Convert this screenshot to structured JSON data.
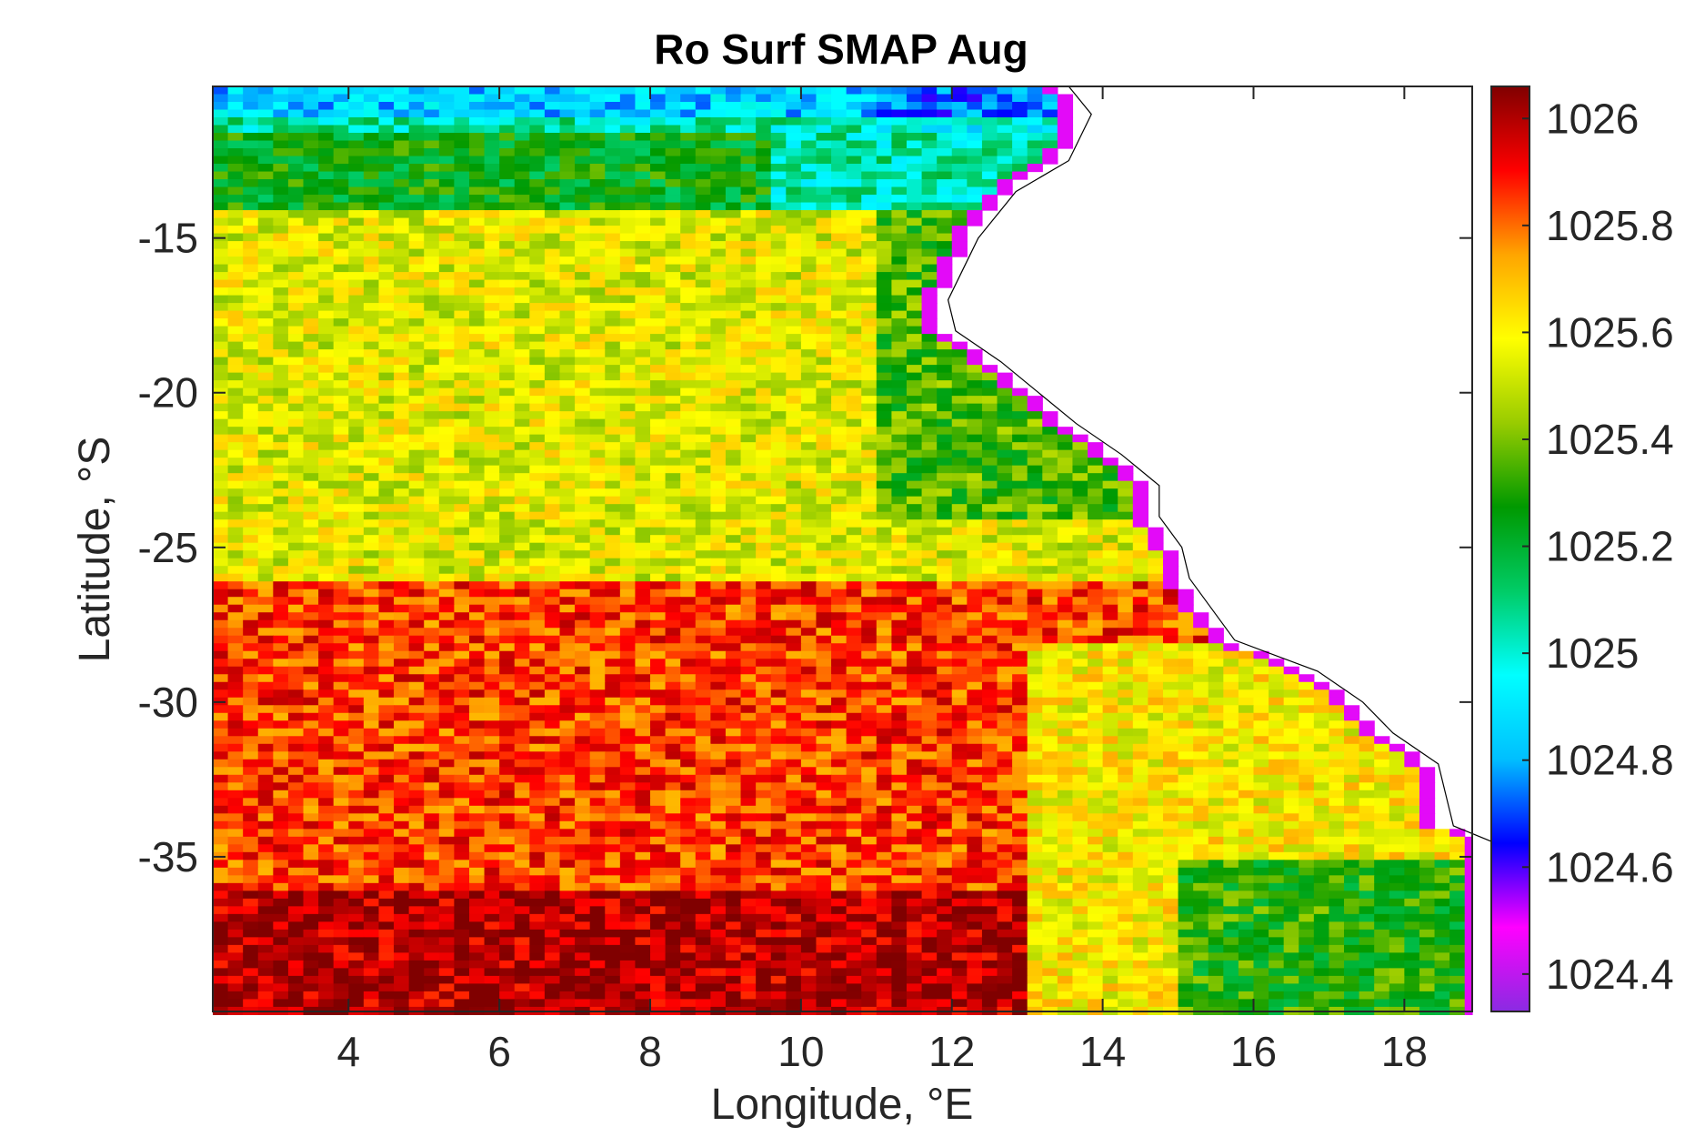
{
  "chart_data": {
    "type": "heatmap",
    "title": "Ro Surf SMAP Aug",
    "xlabel": "Longitude, °E",
    "ylabel": "Latitude, °S",
    "xlim": [
      2.2,
      18.9
    ],
    "ylim": [
      -40,
      -10.1
    ],
    "xticks": [
      4,
      6,
      8,
      10,
      12,
      14,
      16,
      18
    ],
    "xtick_labels": [
      "4",
      "6",
      "8",
      "10",
      "12",
      "14",
      "16",
      "18"
    ],
    "yticks": [
      -15,
      -20,
      -25,
      -30,
      -35
    ],
    "ytick_labels": [
      "-15",
      "-20",
      "-25",
      "-30",
      "-35"
    ],
    "colorbar": {
      "range": [
        1024.33,
        1026.06
      ],
      "ticks": [
        1026,
        1025.8,
        1025.6,
        1025.4,
        1025.2,
        1025,
        1024.8,
        1024.6,
        1024.4
      ],
      "tick_labels": [
        "1026",
        "1025.8",
        "1025.6",
        "1025.4",
        "1025.2",
        "1025",
        "1024.8",
        "1024.6",
        "1024.4"
      ],
      "colors": [
        "#8a2be2",
        "#ff00ff",
        "#0000ff",
        "#00bfff",
        "#00ffff",
        "#00cc66",
        "#009900",
        "#99cc00",
        "#ffff00",
        "#ffa500",
        "#ff0000",
        "#800000"
      ]
    },
    "grid": false,
    "coast_lon_by_lat": [
      [
        -10.1,
        13.3
      ],
      [
        -11,
        13.6
      ],
      [
        -12.5,
        13.3
      ],
      [
        -13.5,
        12.6
      ],
      [
        -15,
        12.1
      ],
      [
        -16,
        11.9
      ],
      [
        -17,
        11.7
      ],
      [
        -18,
        11.8
      ],
      [
        -19,
        12.4
      ],
      [
        -20,
        12.9
      ],
      [
        -21,
        13.4
      ],
      [
        -22,
        14.0
      ],
      [
        -23,
        14.5
      ],
      [
        -24,
        14.5
      ],
      [
        -25,
        14.8
      ],
      [
        -26,
        14.9
      ],
      [
        -27,
        15.2
      ],
      [
        -28,
        15.5
      ],
      [
        -29,
        16.6
      ],
      [
        -30,
        17.2
      ],
      [
        -31,
        17.6
      ],
      [
        -32,
        18.2
      ],
      [
        -33,
        18.3
      ],
      [
        -34,
        18.4
      ],
      [
        -34.5,
        18.9
      ],
      [
        -40,
        18.9
      ]
    ],
    "field_description_bands": [
      {
        "lat_range": [
          -10.1,
          -12
        ],
        "value": 1024.95
      },
      {
        "lat_range": [
          -12,
          -14
        ],
        "value": 1025.3
      },
      {
        "lat_range": [
          -14,
          -26
        ],
        "value": 1025.55
      },
      {
        "lat_range": [
          -26,
          -40
        ],
        "value": 1025.9
      }
    ]
  }
}
